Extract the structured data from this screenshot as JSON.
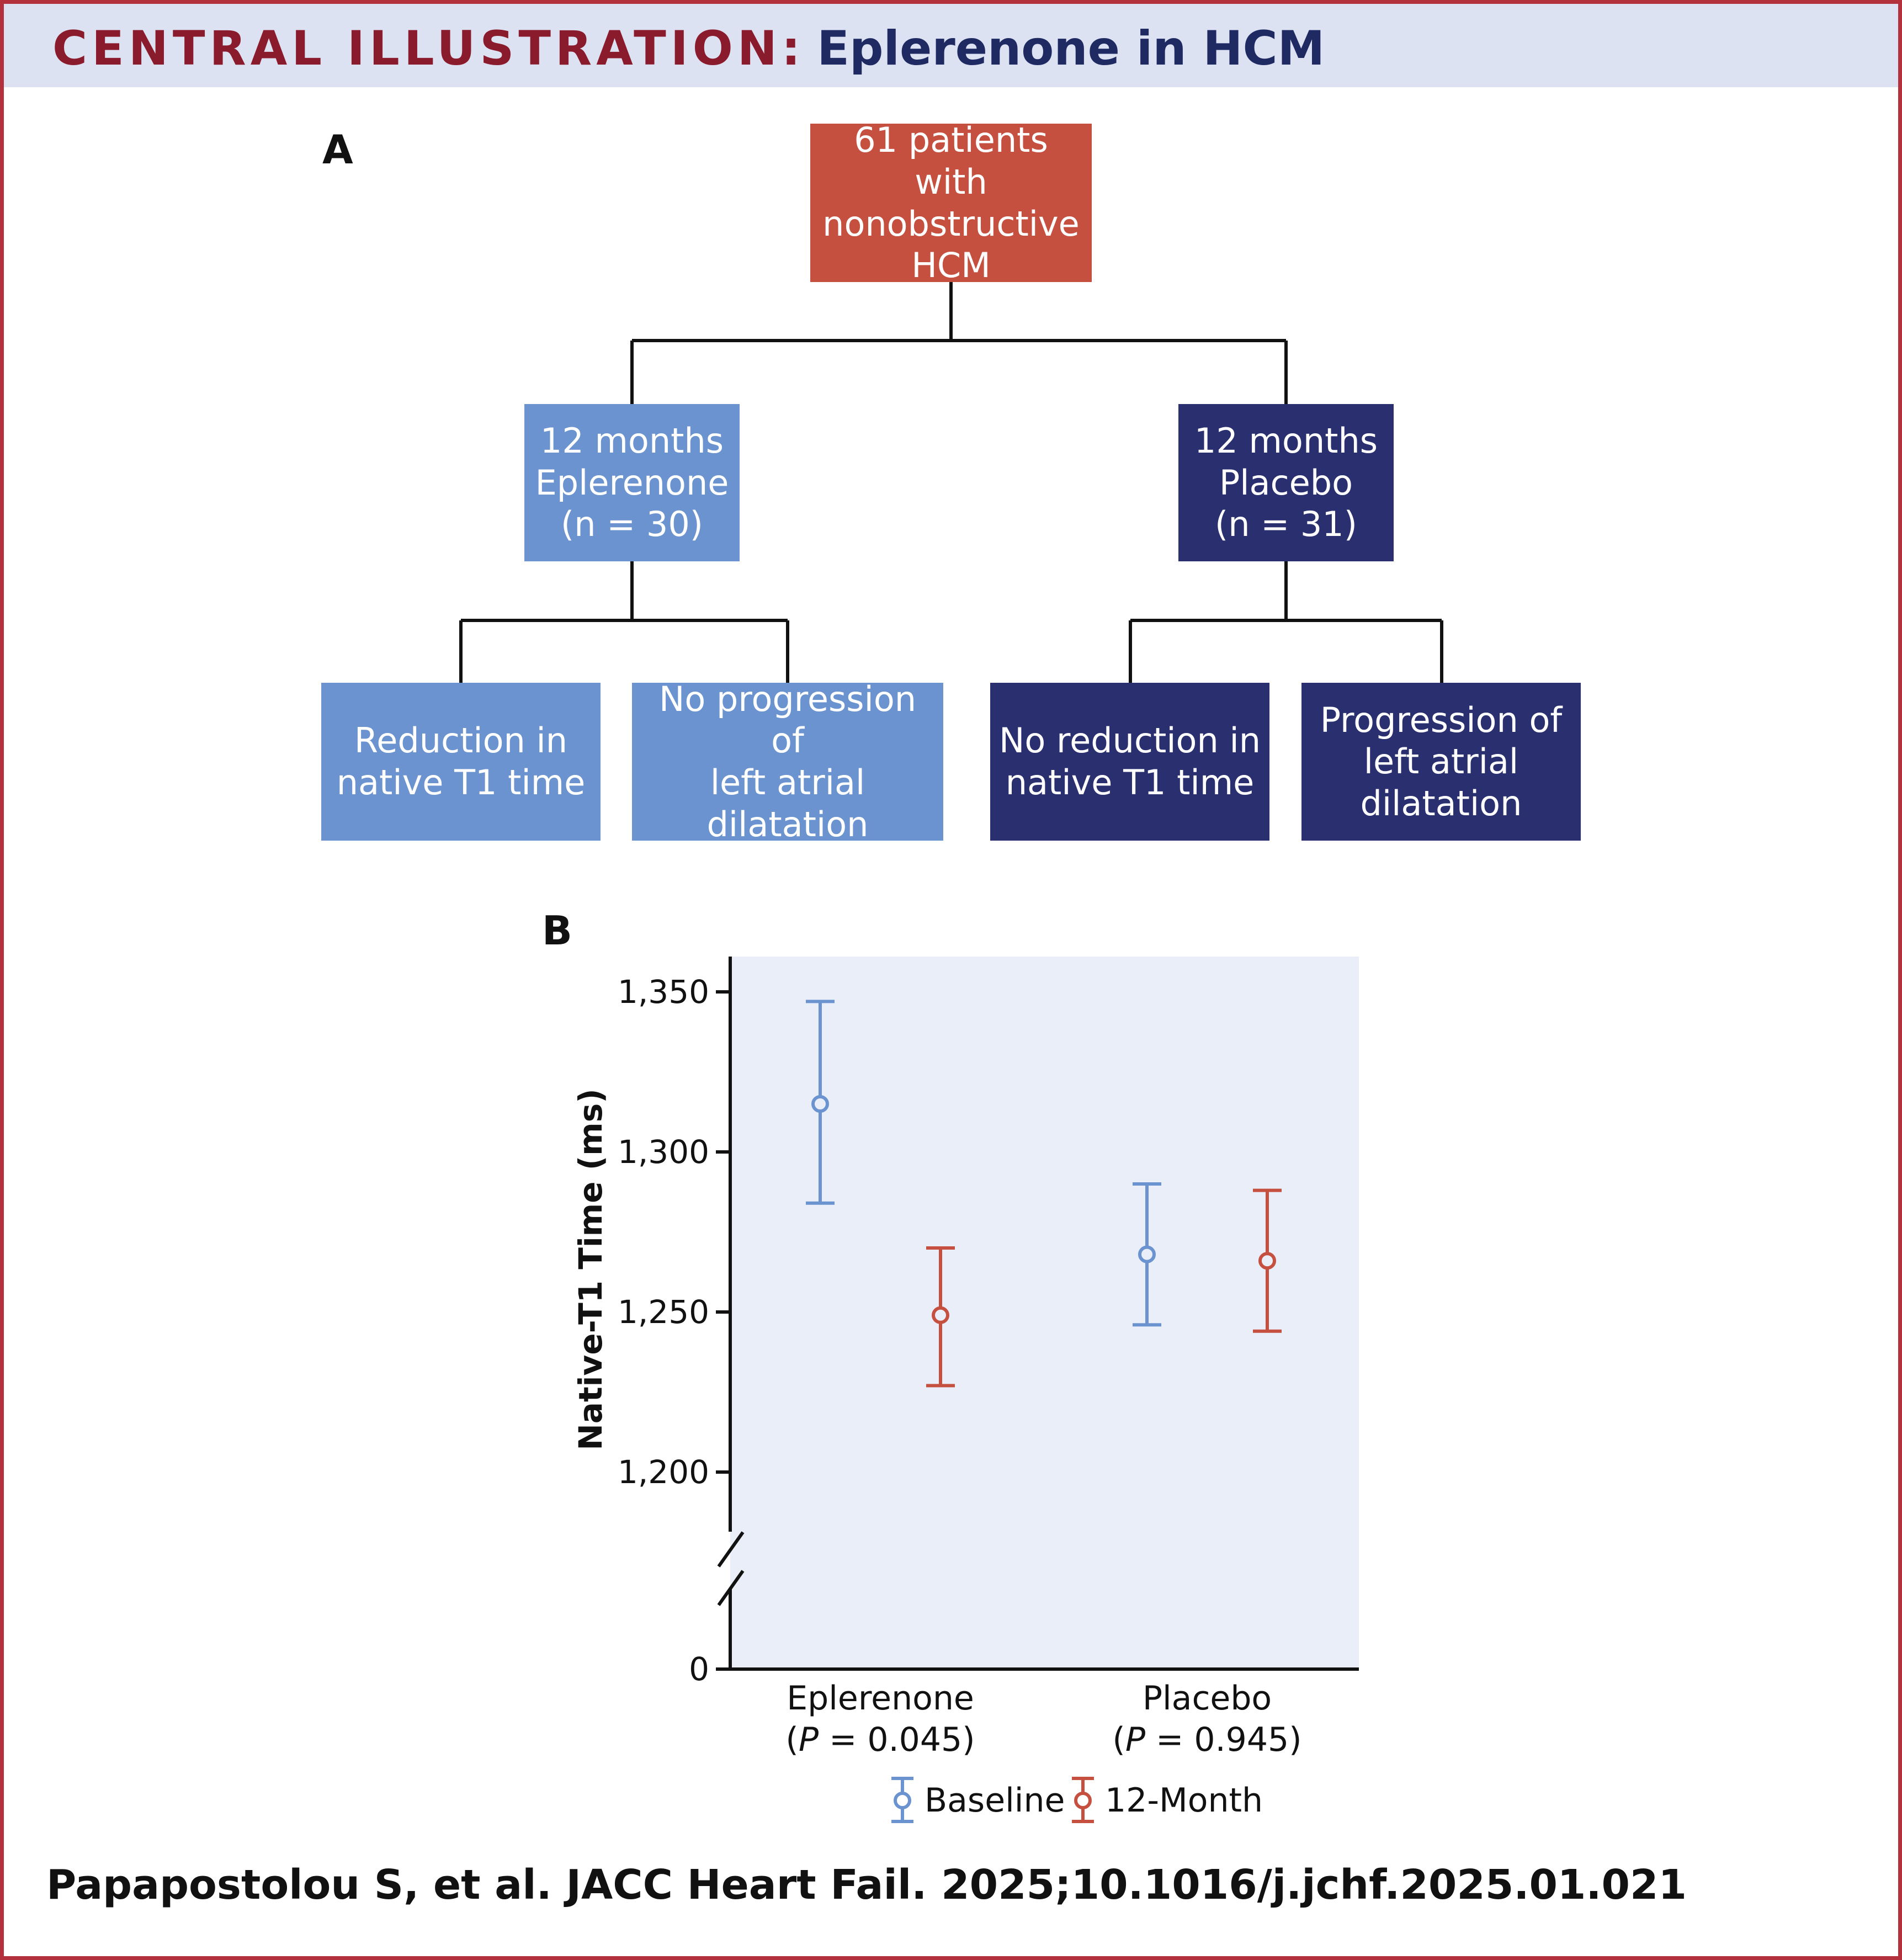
{
  "header": {
    "label": "CENTRAL ILLUSTRATION",
    "colon": ":",
    "title": "Eplerenone in HCM"
  },
  "panel_a": {
    "letter": "A",
    "root": "61 patients with\nnonobstructive\nHCM",
    "arm_eplerenone": "12 months\nEplerenone\n(n = 30)",
    "arm_placebo": "12 months\nPlacebo\n(n = 31)",
    "outcome_1": "Reduction in\nnative T1 time",
    "outcome_2": "No progression of\nleft atrial\ndilatation",
    "outcome_3": "No reduction in\nnative T1 time",
    "outcome_4": "Progression of\nleft atrial\ndilatation",
    "colors": {
      "root": "#c65040",
      "eplerenone": "#6b93d0",
      "placebo": "#2a2f6f"
    }
  },
  "panel_b": {
    "letter": "B"
  },
  "chart_data": {
    "type": "scatter",
    "subtype": "point-with-error-bars",
    "ylabel": "Native-T1 Time (ms)",
    "xlabel": "",
    "y_axis_break": true,
    "y_ticks": [
      {
        "value": 1350,
        "label": "1,350"
      },
      {
        "value": 1300,
        "label": "1,300"
      },
      {
        "value": 1250,
        "label": "1,250"
      },
      {
        "value": 1200,
        "label": "1,200"
      },
      {
        "value": 0,
        "label": "0"
      }
    ],
    "ylim": [
      1180,
      1360
    ],
    "categories": [
      {
        "name": "Eplerenone",
        "pvalue_prefix": "(",
        "p": "P",
        "pvalue_suffix": " = 0.045)"
      },
      {
        "name": "Placebo",
        "pvalue_prefix": "(",
        "p": "P",
        "pvalue_suffix": " = 0.945)"
      }
    ],
    "series": [
      {
        "name": "Baseline",
        "color": "#6b93d0",
        "mean": [
          1315,
          1268
        ],
        "lower": [
          1284,
          1246
        ],
        "upper": [
          1347,
          1290
        ]
      },
      {
        "name": "12-Month",
        "color": "#c65040",
        "mean": [
          1249,
          1266
        ],
        "lower": [
          1227,
          1244
        ],
        "upper": [
          1270,
          1288
        ]
      }
    ],
    "legend_position": "bottom-right",
    "plot_background": "#eaeef8"
  },
  "footer": {
    "citation": "Papapostolou S, et al. JACC Heart Fail. 2025;10.1016/j.jchf.2025.01.021"
  }
}
